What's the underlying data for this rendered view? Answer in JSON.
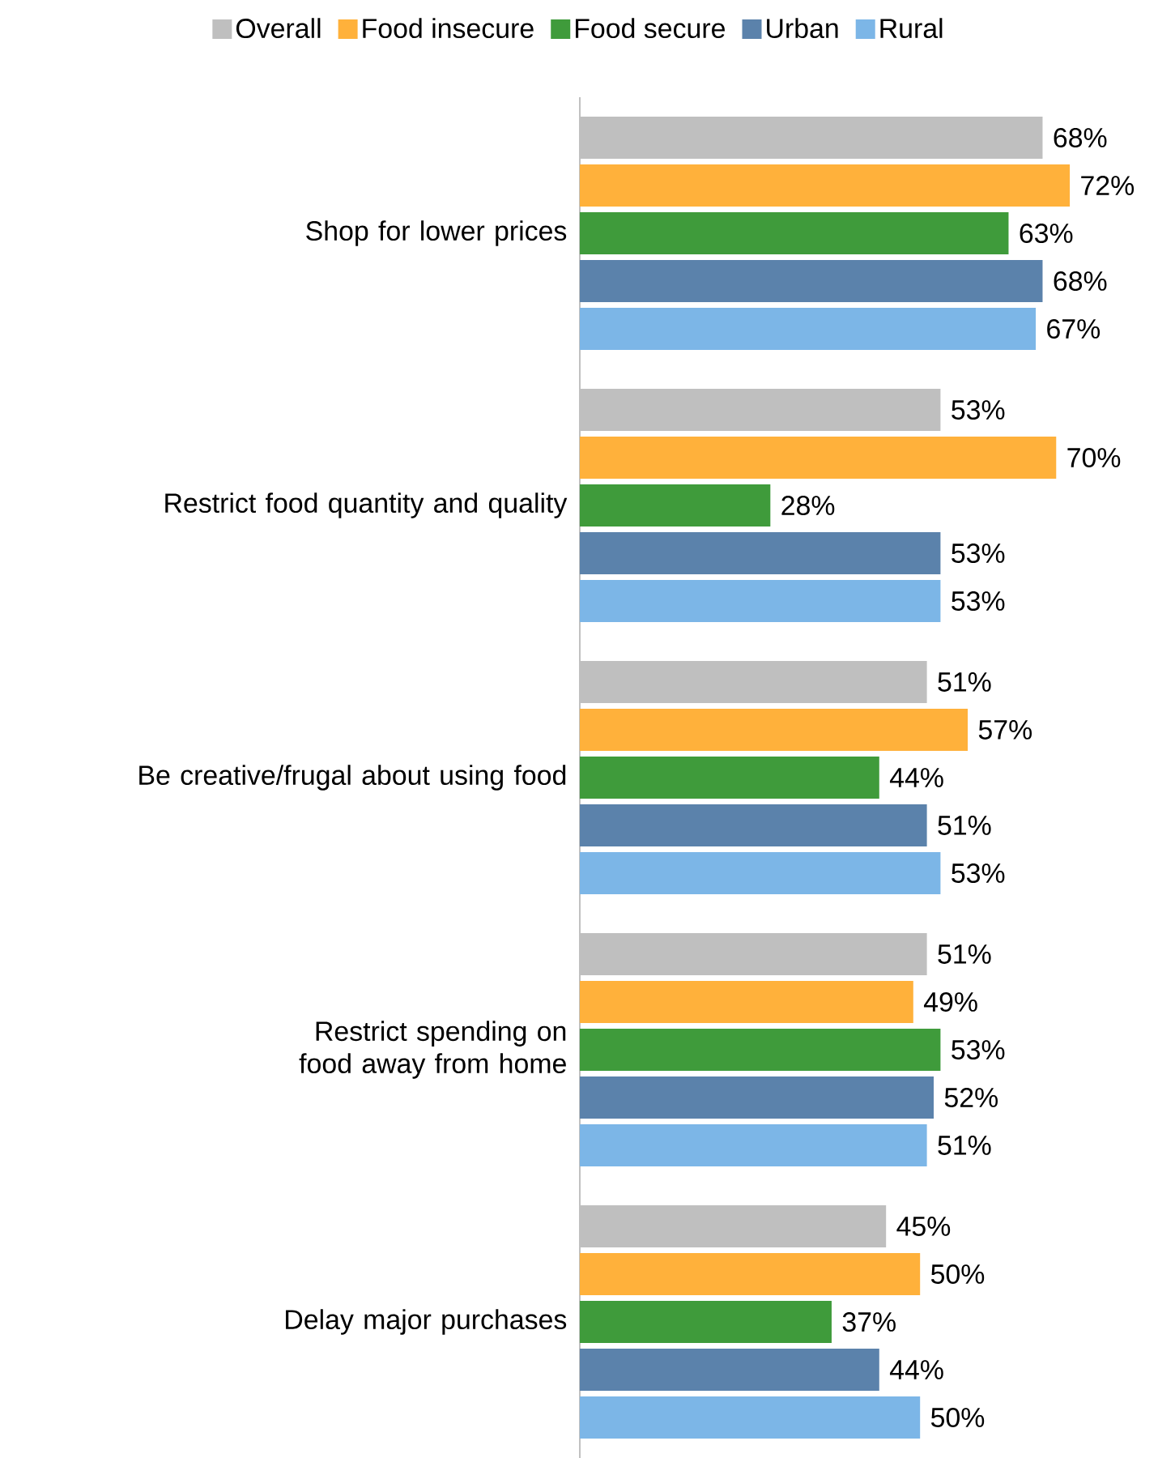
{
  "chart_data": {
    "type": "bar",
    "orientation": "horizontal",
    "legend": "top",
    "categories": [
      "Shop for lower prices",
      "Restrict food quantity and quality",
      "Be creative/frugal about using food",
      "Restrict spending on food away from home",
      "Delay major purchases"
    ],
    "series": [
      {
        "name": "Overall",
        "color": "#bfbfbf",
        "values": [
          68,
          53,
          51,
          51,
          45
        ],
        "value_labels": [
          "68%",
          "53%",
          "51%",
          "51%",
          "45%"
        ]
      },
      {
        "name": "Food insecure",
        "color": "#ffb13b",
        "values": [
          72,
          70,
          57,
          49,
          50
        ],
        "value_labels": [
          "72%",
          "70%",
          "57%",
          "49%",
          "50%"
        ]
      },
      {
        "name": "Food secure",
        "color": "#3f9b3b",
        "values": [
          63,
          28,
          44,
          53,
          37
        ],
        "value_labels": [
          "63%",
          "28%",
          "44%",
          "53%",
          "37%"
        ]
      },
      {
        "name": "Urban",
        "color": "#5b82ab",
        "values": [
          68,
          53,
          51,
          52,
          44
        ],
        "value_labels": [
          "68%",
          "53%",
          "51%",
          "52%",
          "44%"
        ]
      },
      {
        "name": "Rural",
        "color": "#7cb6e7",
        "values": [
          67,
          53,
          53,
          51,
          50
        ],
        "value_labels": [
          "67%",
          "53%",
          "53%",
          "51%",
          "50%"
        ]
      }
    ]
  }
}
